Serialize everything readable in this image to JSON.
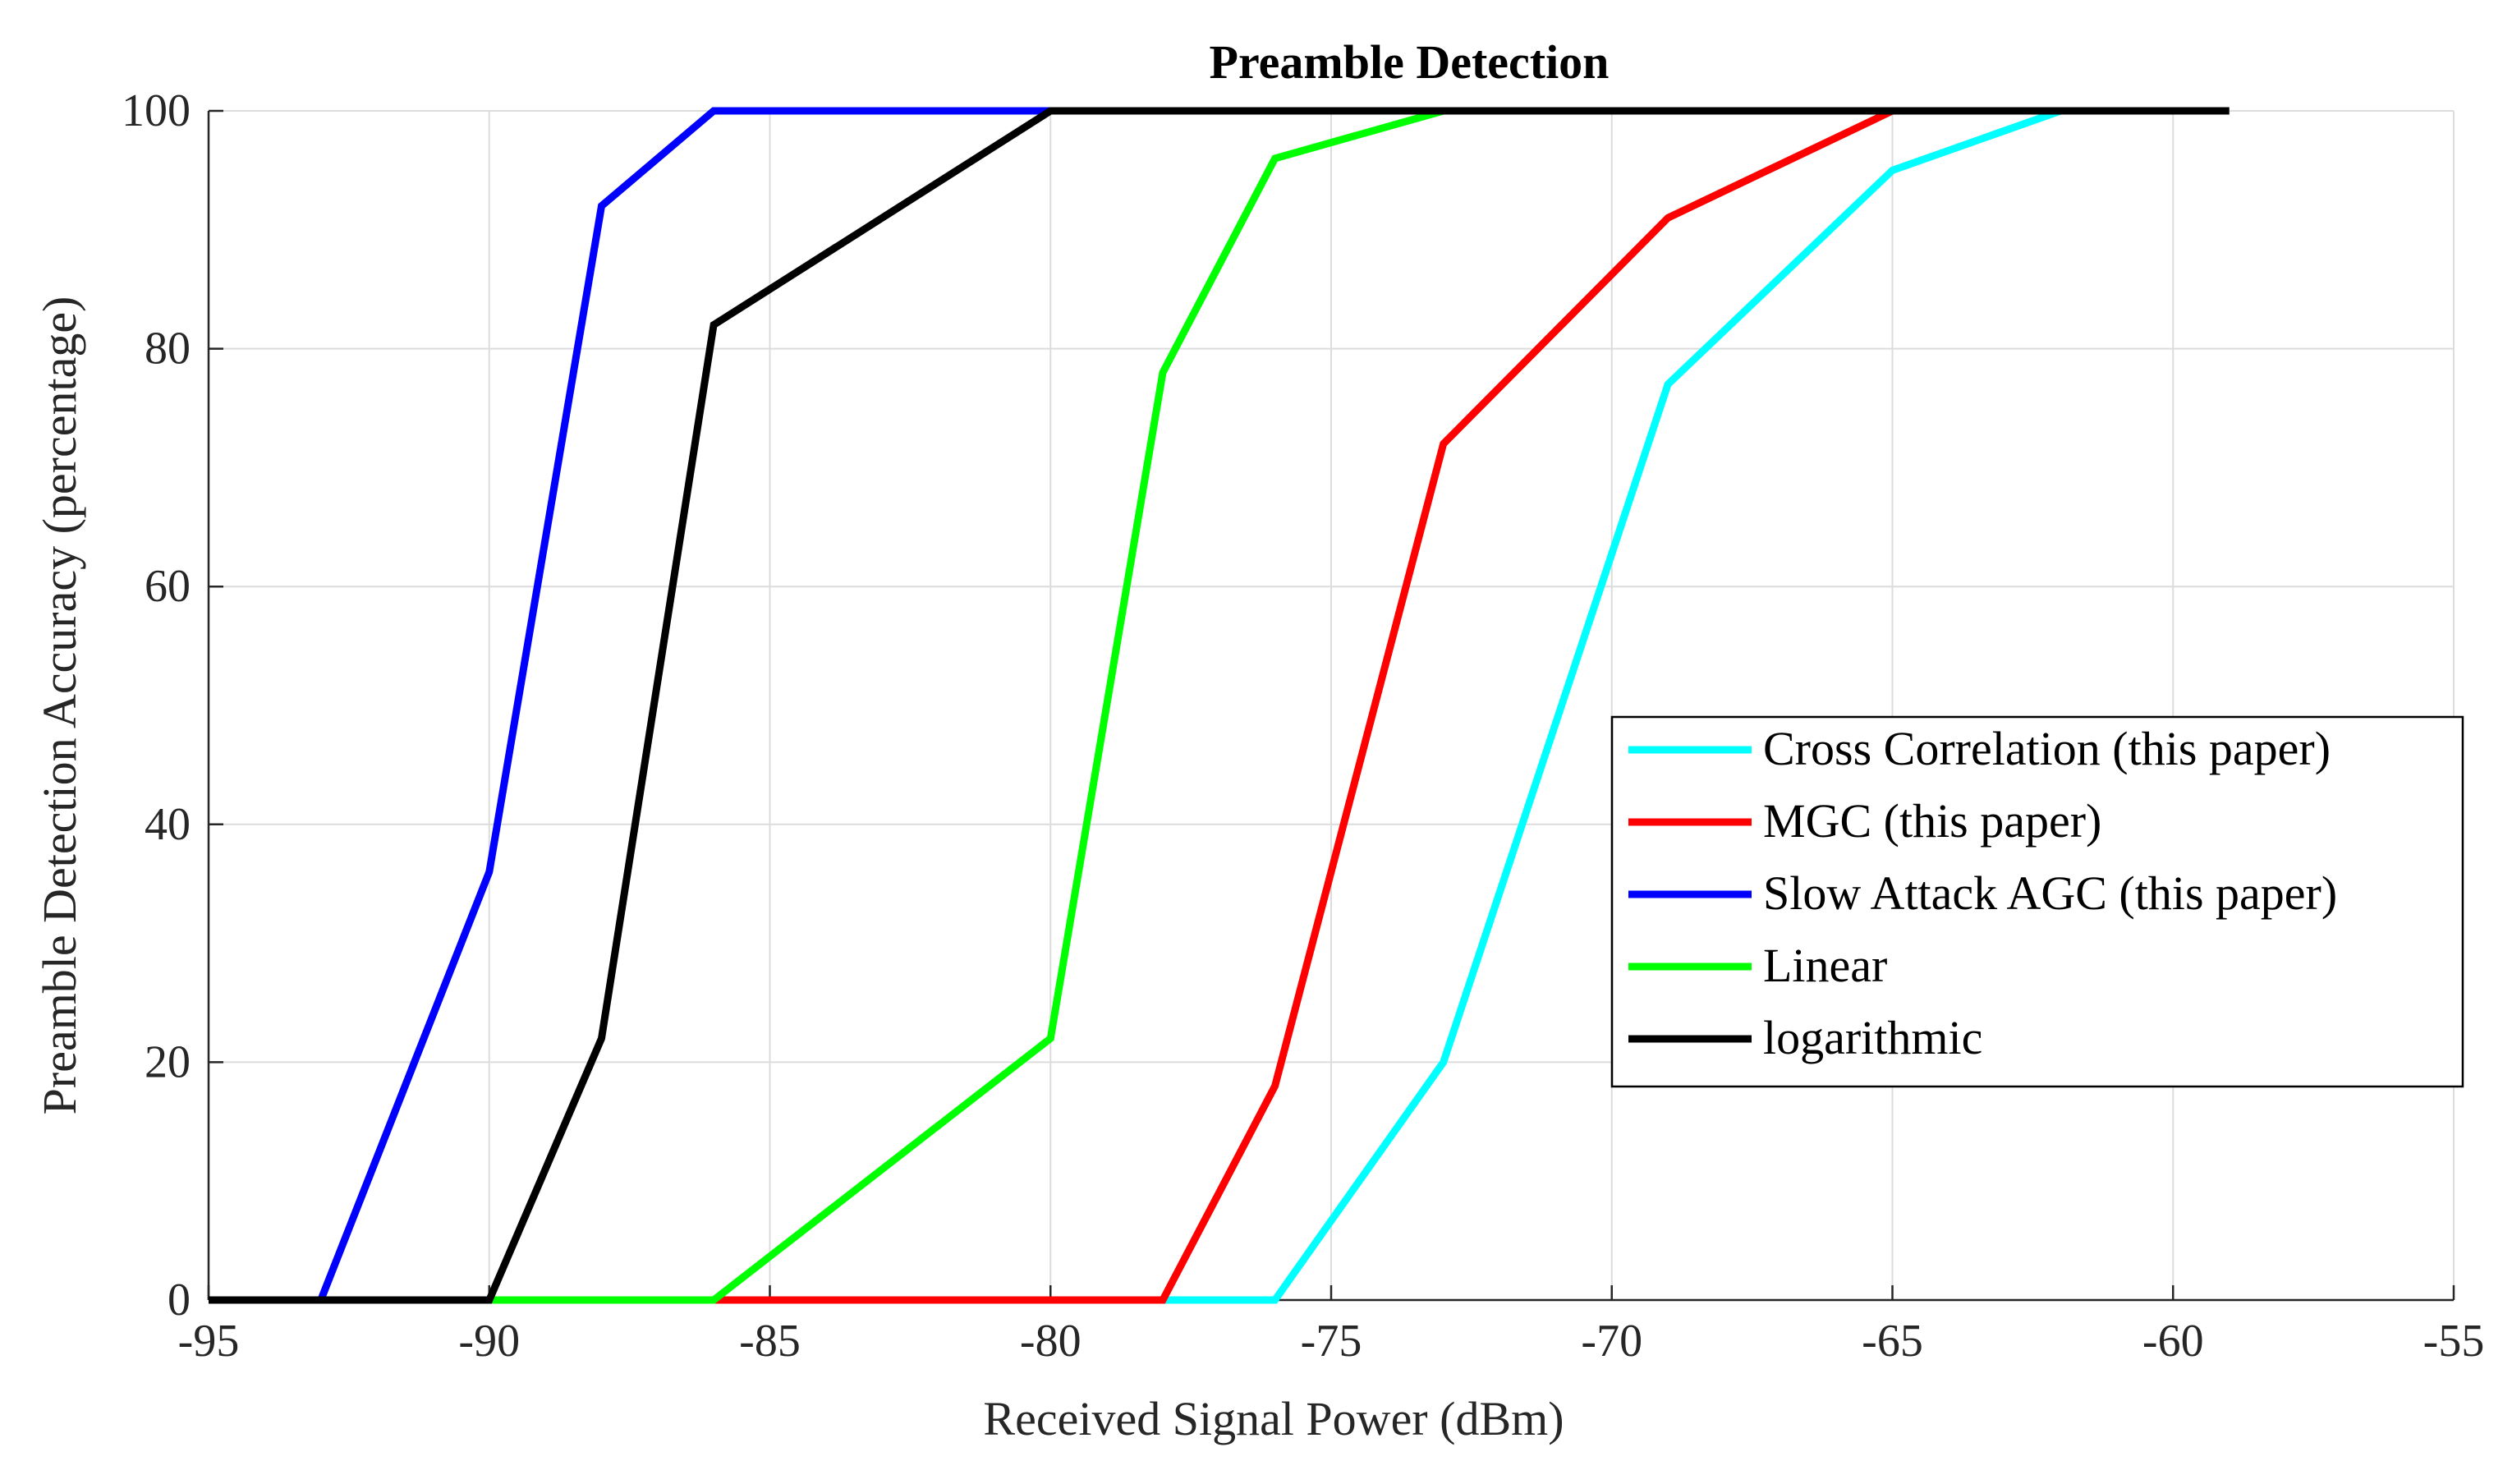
{
  "chart_data": {
    "type": "line",
    "title": "Preamble Detection",
    "xlabel": "Received Signal Power (dBm)",
    "ylabel": "Preamble Detection Accuracy (percentage)",
    "xlim": [
      -95,
      -55
    ],
    "ylim": [
      0,
      100
    ],
    "xticks": [
      -95,
      -90,
      -85,
      -80,
      -75,
      -70,
      -65,
      -60,
      -55
    ],
    "yticks": [
      0,
      20,
      40,
      60,
      80,
      100
    ],
    "grid": true,
    "legend_position": "right",
    "series": [
      {
        "name": "Cross Correlation (this paper)",
        "color": "#00ffff",
        "x": [
          -95,
          -76,
          -73,
          -69,
          -65,
          -62,
          -59
        ],
        "y": [
          0,
          0,
          20,
          77,
          95,
          100,
          100
        ]
      },
      {
        "name": "MGC (this paper)",
        "color": "#ff0000",
        "x": [
          -95,
          -78,
          -76,
          -73,
          -69,
          -65,
          -59
        ],
        "y": [
          0,
          0,
          18,
          72,
          91,
          100,
          100
        ]
      },
      {
        "name": "Slow Attack AGC (this paper)",
        "color": "#0000ff",
        "x": [
          -95,
          -93,
          -90,
          -88,
          -86,
          -59
        ],
        "y": [
          0,
          0,
          36,
          92,
          100,
          100
        ]
      },
      {
        "name": "Linear",
        "color": "#00ff00",
        "x": [
          -95,
          -86,
          -80,
          -78,
          -76,
          -73,
          -59
        ],
        "y": [
          0,
          0,
          22,
          78,
          96,
          100,
          100
        ]
      },
      {
        "name": "logarithmic",
        "color": "#000000",
        "x": [
          -95,
          -90,
          -88,
          -86,
          -80,
          -59
        ],
        "y": [
          0,
          0,
          22,
          82,
          100,
          100
        ]
      }
    ]
  }
}
